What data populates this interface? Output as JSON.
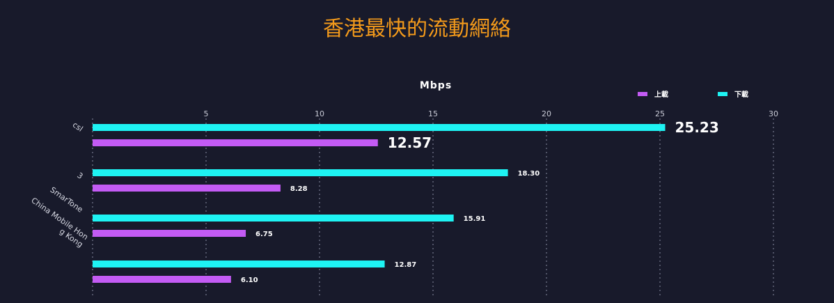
{
  "chart_data": {
    "type": "bar",
    "orientation": "horizontal",
    "title": "香港最快的流動網絡",
    "xlabel": "Mbps",
    "ylabel": "",
    "xlim": [
      0,
      30
    ],
    "x_ticks": [
      "5",
      "10",
      "15",
      "20",
      "25",
      "30"
    ],
    "grid": "vertical-dotted",
    "legend_position": "top-right",
    "categories": [
      "csl",
      "3",
      "SmarTone",
      "China Mobile Hong Kong"
    ],
    "category_labels": [
      [
        "csl"
      ],
      [
        "3"
      ],
      [
        "SmarTone"
      ],
      [
        "China Mobile Hon",
        "g Kong"
      ]
    ],
    "series": [
      {
        "name": "下載",
        "color": "#1ef3f3",
        "values": [
          25.23,
          18.3,
          15.91,
          12.87
        ],
        "labels": [
          "25.23",
          "18.30",
          "15.91",
          "12.87"
        ]
      },
      {
        "name": "上載",
        "color": "#c35bf4",
        "values": [
          12.57,
          8.28,
          6.75,
          6.1
        ],
        "labels": [
          "12.57",
          "8.28",
          "6.75",
          "6.10"
        ]
      }
    ],
    "legend": [
      {
        "name": "上載",
        "color": "#c35bf4"
      },
      {
        "name": "下載",
        "color": "#1ef3f3"
      }
    ],
    "highlighted_category": "csl"
  }
}
